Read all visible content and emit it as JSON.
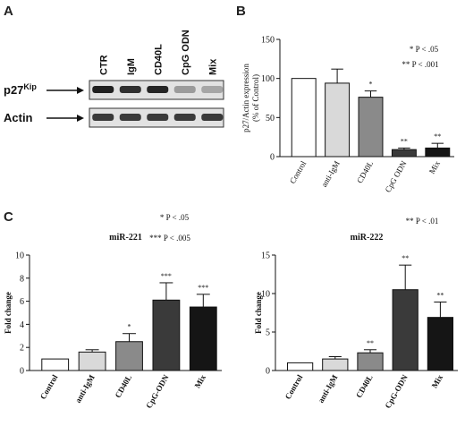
{
  "panel_a": {
    "letter": "A",
    "lanes": [
      "CTR",
      "IgM",
      "CD40L",
      "CpG ODN",
      "Mix"
    ],
    "rows": [
      {
        "label": "p27",
        "superscript": "Kip",
        "intensities": [
          0.92,
          0.85,
          0.9,
          0.35,
          0.3
        ]
      },
      {
        "label": "Actin",
        "superscript": "",
        "intensities": [
          0.8,
          0.8,
          0.8,
          0.8,
          0.8
        ]
      }
    ]
  },
  "panel_b_letter": "B",
  "panel_c_letter": "C",
  "chart_data": [
    {
      "type": "bar",
      "panel": "B",
      "title": "",
      "categories": [
        "Control",
        "anti-IgM",
        "CD40L",
        "CpG ODN",
        "Mix"
      ],
      "values": [
        100,
        94,
        76,
        9,
        11
      ],
      "errors": [
        0,
        18,
        8,
        2,
        6
      ],
      "significance": [
        "",
        "",
        "*",
        "**",
        "**"
      ],
      "bar_colors": [
        "#ffffff",
        "#d9d9d9",
        "#8a8a8a",
        "#3a3a3a",
        "#151515"
      ],
      "ylabel_lines": [
        "p27/Actin expression",
        "(% of Control)"
      ],
      "ylim": [
        0,
        150
      ],
      "yticks": [
        0,
        50,
        100,
        150
      ],
      "ytick_labels": [
        "0",
        "50",
        "100",
        "150"
      ],
      "notes": [
        "* P < .05",
        "** P < .001"
      ],
      "grid": false
    },
    {
      "type": "bar",
      "panel": "C-left",
      "title": "miR-221",
      "categories": [
        "Control",
        "anti-IgM",
        "CD40L",
        "CpG-ODN",
        "Mix"
      ],
      "values": [
        1.0,
        1.6,
        2.5,
        6.1,
        5.5
      ],
      "errors": [
        0,
        0.2,
        0.7,
        1.5,
        1.1
      ],
      "significance": [
        "",
        "",
        "*",
        "***",
        "***"
      ],
      "bar_colors": [
        "#ffffff",
        "#d9d9d9",
        "#8a8a8a",
        "#3a3a3a",
        "#151515"
      ],
      "ylabel": "Fold change",
      "ylim": [
        0,
        10
      ],
      "yticks": [
        0,
        2,
        4,
        6,
        8,
        10
      ],
      "ytick_labels": [
        "0",
        "2",
        "4",
        "6",
        "8",
        "10"
      ],
      "notes": [
        "* P < .05",
        "*** P < .005"
      ],
      "grid": false
    },
    {
      "type": "bar",
      "panel": "C-right",
      "title": "miR-222",
      "categories": [
        "Control",
        "anti-IgM",
        "CD40L",
        "CpG-ODN",
        "Mix"
      ],
      "values": [
        1.0,
        1.5,
        2.3,
        10.5,
        6.9
      ],
      "errors": [
        0,
        0.3,
        0.4,
        3.2,
        2.0
      ],
      "significance": [
        "",
        "",
        "**",
        "**",
        "**"
      ],
      "bar_colors": [
        "#ffffff",
        "#d9d9d9",
        "#8a8a8a",
        "#3a3a3a",
        "#151515"
      ],
      "ylabel": "Fold change",
      "ylim": [
        0,
        15
      ],
      "yticks": [
        0,
        5,
        10,
        15
      ],
      "ytick_labels": [
        "0",
        "5",
        "10",
        "15"
      ],
      "notes": [
        "** P < .01"
      ],
      "grid": false
    }
  ]
}
